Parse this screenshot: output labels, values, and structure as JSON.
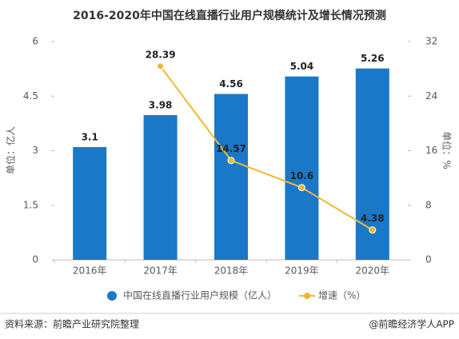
{
  "chart_data": {
    "type": "bar",
    "title": "2016-2020年中国在线直播行业用户规模统计及增长情况预测",
    "y_label": "单位：亿人",
    "y2_label": "单位：%",
    "categories": [
      "2016年",
      "2017年",
      "2018年",
      "2019年",
      "2020年"
    ],
    "series": [
      {
        "name": "中国在线直播行业用户规模（亿人）",
        "color": "#1a78c8",
        "type": "bar",
        "values": [
          3.1,
          3.98,
          4.56,
          5.04,
          5.26
        ]
      },
      {
        "name": "增速（%）",
        "color": "#f2b730",
        "type": "line",
        "axis": "y2",
        "values": [
          null,
          28.39,
          14.57,
          10.6,
          4.38
        ]
      }
    ],
    "ylim": [
      0,
      6
    ],
    "yticks": [
      0,
      1.5,
      3,
      4.5,
      6
    ],
    "y2lim": [
      0,
      32
    ],
    "y2ticks": [
      0,
      8,
      16,
      24,
      32
    ],
    "source": "资料来源：前瞻产业研究院整理",
    "brand": "@前瞻经济学人APP"
  }
}
